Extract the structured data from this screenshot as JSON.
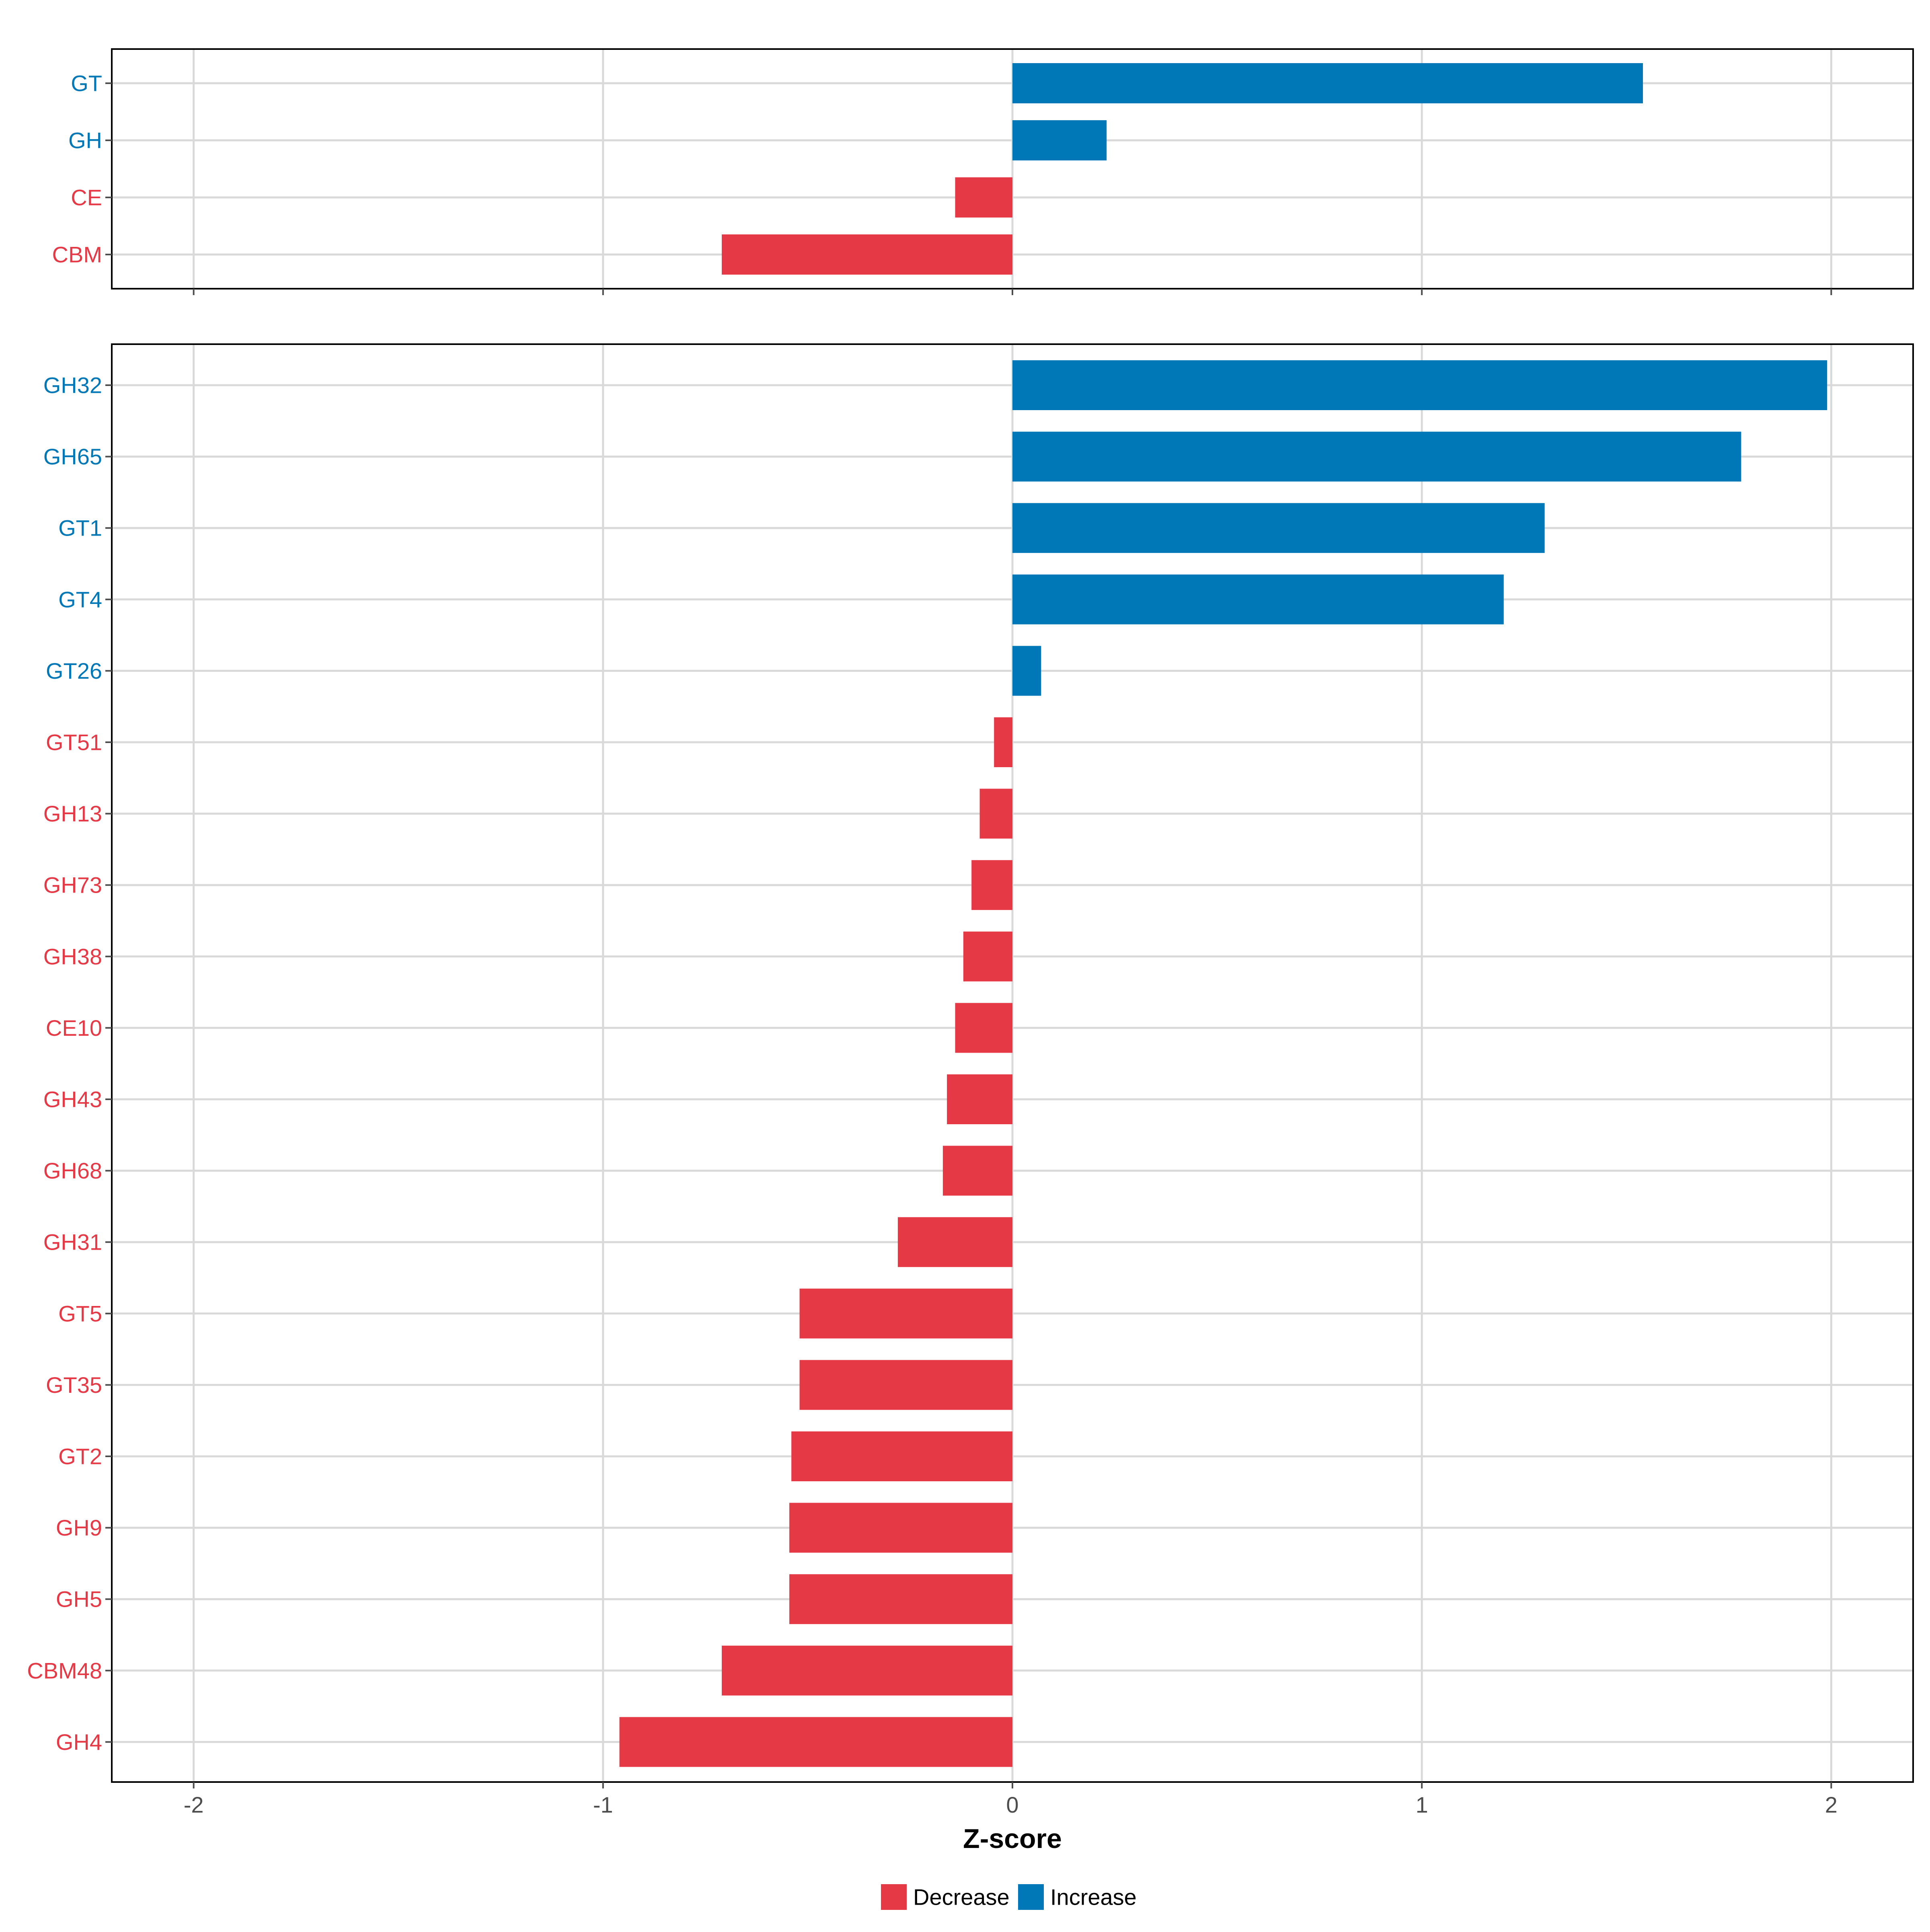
{
  "colors": {
    "decrease": "#E63946",
    "increase": "#0077B6",
    "grid": "#D9D9D9",
    "axis": "#000000",
    "tick_text": "#4D4D4D",
    "title_text": "#000000",
    "background": "#FFFFFF"
  },
  "chart_data": [
    {
      "type": "bar",
      "orientation": "horizontal",
      "panel": "top",
      "categories": [
        "GT",
        "GH",
        "CE",
        "CBM"
      ],
      "values": [
        1.54,
        0.23,
        -0.14,
        -0.71
      ],
      "groups": [
        "Increase",
        "Increase",
        "Decrease",
        "Decrease"
      ],
      "xlim": [
        -2.2,
        2.2
      ],
      "xticks": [
        -2,
        -1,
        0,
        1,
        2
      ],
      "show_tick_labels": false,
      "grid": true
    },
    {
      "type": "bar",
      "orientation": "horizontal",
      "panel": "bottom",
      "categories": [
        "GH32",
        "GH65",
        "GT1",
        "GT4",
        "GT26",
        "GT51",
        "GH13",
        "GH73",
        "GH38",
        "CE10",
        "GH43",
        "GH68",
        "GH31",
        "GT5",
        "GT35",
        "GT2",
        "GH9",
        "GH5",
        "CBM48",
        "GH4"
      ],
      "values": [
        1.99,
        1.78,
        1.3,
        1.2,
        0.07,
        -0.045,
        -0.08,
        -0.1,
        -0.12,
        -0.14,
        -0.16,
        -0.17,
        -0.28,
        -0.52,
        -0.52,
        -0.54,
        -0.545,
        -0.545,
        -0.71,
        -0.96
      ],
      "groups": [
        "Increase",
        "Increase",
        "Increase",
        "Increase",
        "Increase",
        "Decrease",
        "Decrease",
        "Decrease",
        "Decrease",
        "Decrease",
        "Decrease",
        "Decrease",
        "Decrease",
        "Decrease",
        "Decrease",
        "Decrease",
        "Decrease",
        "Decrease",
        "Decrease",
        "Decrease"
      ],
      "xlim": [
        -2.2,
        2.2
      ],
      "xticks": [
        -2,
        -1,
        0,
        1,
        2
      ],
      "xtick_labels": [
        "-2",
        "-1",
        "0",
        "1",
        "2"
      ],
      "show_tick_labels": true,
      "grid": true
    }
  ],
  "axis": {
    "xlabel": "Z-score"
  },
  "legend": {
    "position": "bottom",
    "items": [
      {
        "label": "Decrease",
        "color": "#E63946"
      },
      {
        "label": "Increase",
        "color": "#0077B6"
      }
    ]
  }
}
